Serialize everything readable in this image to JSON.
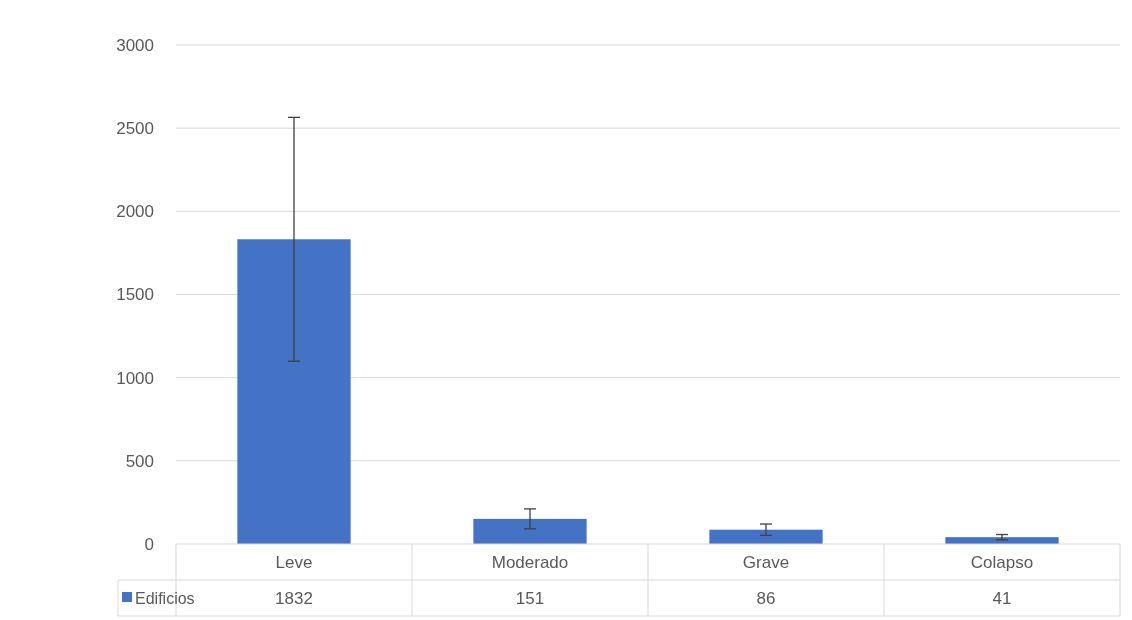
{
  "chart_data": {
    "type": "bar",
    "categories": [
      "Leve",
      "Moderado",
      "Grave",
      "Colapso"
    ],
    "series": [
      {
        "name": "Edificios",
        "color": "#4472c4",
        "values": [
          1832,
          151,
          86,
          41
        ],
        "errors": [
          733,
          60,
          34,
          16
        ]
      }
    ],
    "ylim": [
      0,
      3000
    ],
    "yticks": [
      0,
      500,
      1000,
      1500,
      2000,
      2500,
      3000
    ],
    "grid": "y",
    "data_labels": true,
    "legend": "bottom"
  }
}
